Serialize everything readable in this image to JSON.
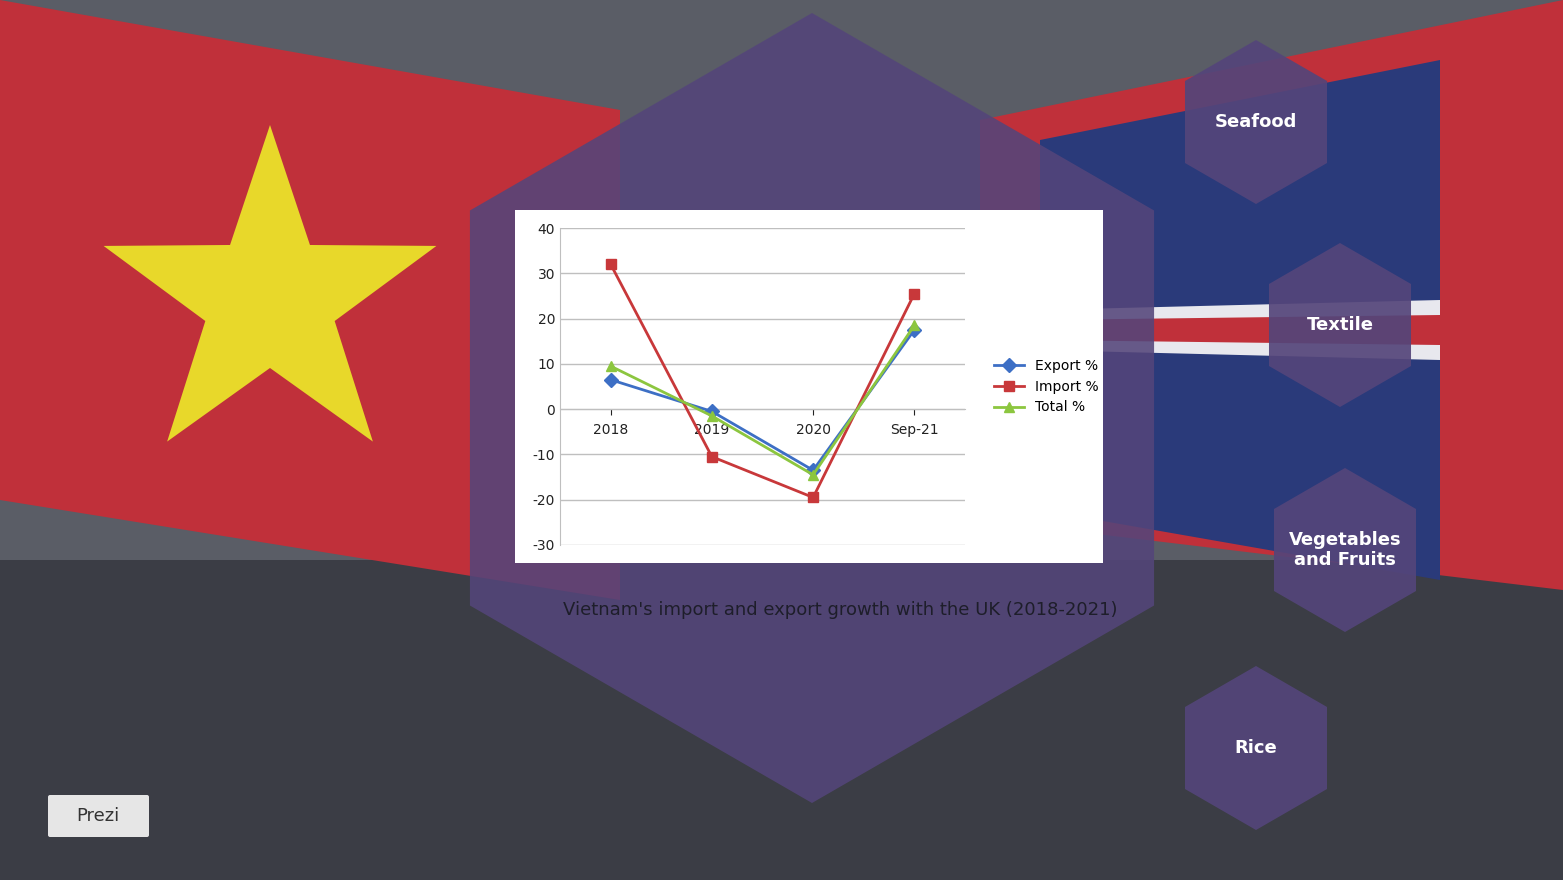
{
  "chart_data": {
    "type": "line",
    "title": "Vietnam's import and export growth with the UK (2018-2021)",
    "categories": [
      "2018",
      "2019",
      "2020",
      "Sep-21"
    ],
    "series": [
      {
        "name": "Export %",
        "color": "#3d6fc5",
        "marker": "diamond",
        "line_style": "solid",
        "values": [
          6.5,
          -0.5,
          -13.5,
          17.5
        ]
      },
      {
        "name": "Import %",
        "color": "#c8383a",
        "marker": "square",
        "line_style": "solid",
        "values": [
          32,
          -10.5,
          -19.5,
          25.5
        ]
      },
      {
        "name": "Total %",
        "color": "#8cc63f",
        "marker": "triangle",
        "line_style": "solid",
        "values": [
          9.5,
          -1.5,
          -14.5,
          18.5
        ]
      }
    ],
    "ylim": [
      -30,
      40
    ],
    "yticks": [
      -30,
      -20,
      -10,
      0,
      10,
      20,
      30,
      40
    ],
    "grid": true,
    "legend": "right"
  },
  "slide": {
    "items": [
      "Seafood",
      "Textile",
      "Vegetables and Fruits",
      "Rice"
    ],
    "logo": "Prezi"
  }
}
